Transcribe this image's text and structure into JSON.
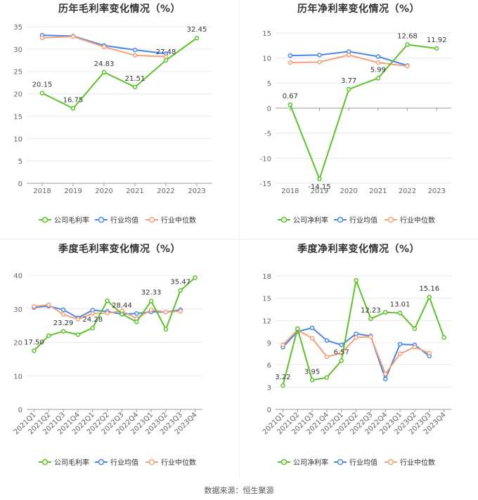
{
  "source": "数据来源：恒生聚源",
  "legend_labels": [
    "公司毛利率",
    "行业均值",
    "行业中位数"
  ],
  "colors": {
    "company": "#5dc22a",
    "mean": "#4a86e8",
    "median": "#f4a07a",
    "grid": "#e8e8e8",
    "axis": "#999999",
    "text": "#666666",
    "label": "#333333"
  },
  "chart_data": [
    {
      "type": "line",
      "title": "历年毛利率变化情况（%）",
      "categories": [
        "2018",
        "2019",
        "2020",
        "2021",
        "2022",
        "2023"
      ],
      "ylim": [
        0,
        35
      ],
      "yticks": [
        0,
        5,
        10,
        15,
        20,
        25,
        30,
        35
      ],
      "legend": [
        "公司毛利率",
        "行业均值",
        "行业中位数"
      ],
      "series": [
        {
          "name": "公司毛利率",
          "values": [
            20.15,
            16.75,
            24.83,
            21.51,
            27.48,
            32.45
          ]
        },
        {
          "name": "行业均值",
          "values": [
            33.1,
            32.9,
            30.8,
            29.8,
            29.0,
            null
          ]
        },
        {
          "name": "行业中位数",
          "values": [
            32.5,
            32.8,
            30.5,
            28.6,
            28.3,
            null
          ]
        }
      ],
      "labels": [
        "20.15",
        "16.75",
        "24.83",
        "21.51",
        "27.48",
        "32.45"
      ]
    },
    {
      "type": "line",
      "title": "历年净利率变化情况（%）",
      "categories": [
        "2018",
        "2019",
        "2020",
        "2021",
        "2022",
        "2023"
      ],
      "ylim": [
        -15,
        15
      ],
      "yticks": [
        -15,
        -10,
        -5,
        0,
        5,
        10,
        15
      ],
      "legend": [
        "公司净利率",
        "行业均值",
        "行业中位数"
      ],
      "series": [
        {
          "name": "公司净利率",
          "values": [
            0.67,
            -14.15,
            3.77,
            5.99,
            12.68,
            11.92
          ]
        },
        {
          "name": "行业均值",
          "values": [
            10.5,
            10.6,
            11.3,
            10.3,
            8.5,
            null
          ]
        },
        {
          "name": "行业中位数",
          "values": [
            9.1,
            9.2,
            10.6,
            9.1,
            8.4,
            null
          ]
        }
      ],
      "labels": [
        "0.67",
        "-14.15",
        "3.77",
        "5.99",
        "12.68",
        "11.92"
      ]
    },
    {
      "type": "line",
      "title": "季度毛利率变化情况（%）",
      "categories": [
        "2021Q1",
        "2021Q2",
        "2021Q3",
        "2021Q4",
        "2022Q1",
        "2022Q2",
        "2022Q3",
        "2022Q4",
        "2023Q1",
        "2023Q2",
        "2023Q3",
        "2023Q4"
      ],
      "ylim": [
        0,
        40
      ],
      "yticks": [
        0,
        10,
        20,
        30,
        40
      ],
      "legend": [
        "公司毛利率",
        "行业均值",
        "行业中位数"
      ],
      "series": [
        {
          "name": "公司毛利率",
          "values": [
            17.5,
            22.0,
            23.29,
            22.3,
            24.28,
            32.4,
            28.44,
            26.1,
            32.33,
            23.9,
            35.47,
            39.3
          ]
        },
        {
          "name": "行业均值",
          "values": [
            30.4,
            30.8,
            29.7,
            27.3,
            29.6,
            29.2,
            28.4,
            28.6,
            29.1,
            29.0,
            29.7,
            null
          ]
        },
        {
          "name": "行业中位数",
          "values": [
            30.7,
            31.2,
            28.3,
            26.9,
            28.6,
            28.7,
            29.4,
            27.1,
            29.7,
            29.0,
            29.3,
            null
          ]
        }
      ],
      "labels": [
        {
          "i": 0,
          "text": "17.50"
        },
        {
          "i": 2,
          "text": "23.29"
        },
        {
          "i": 4,
          "text": "24.28"
        },
        {
          "i": 6,
          "text": "28.44"
        },
        {
          "i": 8,
          "text": "32.33"
        },
        {
          "i": 10,
          "text": "35.47"
        }
      ]
    },
    {
      "type": "line",
      "title": "季度净利率变化情况（%）",
      "categories": [
        "2021Q1",
        "2021Q2",
        "2021Q3",
        "2021Q4",
        "2022Q1",
        "2022Q2",
        "2022Q3",
        "2022Q4",
        "2023Q1",
        "2023Q2",
        "2023Q3",
        "2023Q4"
      ],
      "ylim": [
        0,
        18
      ],
      "yticks": [
        0,
        3,
        6,
        9,
        12,
        15,
        18
      ],
      "legend": [
        "公司净利率",
        "行业均值",
        "行业中位数"
      ],
      "series": [
        {
          "name": "公司净利率",
          "values": [
            3.22,
            10.9,
            3.95,
            4.3,
            6.57,
            17.4,
            12.23,
            13.1,
            13.01,
            10.9,
            15.16,
            9.7
          ]
        },
        {
          "name": "行业均值",
          "values": [
            8.4,
            10.5,
            11.0,
            9.3,
            8.7,
            10.2,
            9.9,
            4.1,
            8.8,
            8.7,
            7.2,
            null
          ]
        },
        {
          "name": "行业中位数",
          "values": [
            8.7,
            10.7,
            9.6,
            7.1,
            7.6,
            9.7,
            9.8,
            4.8,
            7.5,
            8.4,
            7.6,
            null
          ]
        }
      ],
      "labels": [
        {
          "i": 0,
          "text": "3.22"
        },
        {
          "i": 2,
          "text": "3.95"
        },
        {
          "i": 4,
          "text": "6.57"
        },
        {
          "i": 6,
          "text": "12.23"
        },
        {
          "i": 8,
          "text": "13.01"
        },
        {
          "i": 10,
          "text": "15.16"
        }
      ]
    }
  ]
}
